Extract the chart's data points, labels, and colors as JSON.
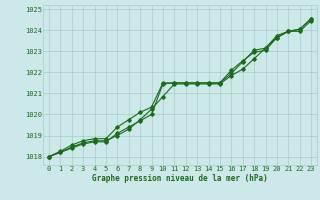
{
  "x": [
    0,
    1,
    2,
    3,
    4,
    5,
    6,
    7,
    8,
    9,
    10,
    11,
    12,
    13,
    14,
    15,
    16,
    17,
    18,
    19,
    20,
    21,
    22,
    23
  ],
  "line1": [
    1018.0,
    1018.2,
    1018.4,
    1018.6,
    1018.7,
    1018.7,
    1019.1,
    1019.4,
    1019.7,
    1020.0,
    1021.45,
    1021.5,
    1021.5,
    1021.5,
    1021.5,
    1021.5,
    1022.1,
    1022.55,
    1022.95,
    1023.05,
    1023.65,
    1023.95,
    1024.05,
    1024.55
  ],
  "line2": [
    1018.0,
    1018.2,
    1018.45,
    1018.65,
    1018.75,
    1018.75,
    1019.0,
    1019.3,
    1019.75,
    1020.25,
    1020.85,
    1021.45,
    1021.45,
    1021.45,
    1021.45,
    1021.45,
    1021.85,
    1022.15,
    1022.65,
    1023.15,
    1023.65,
    1023.95,
    1023.95,
    1024.45
  ],
  "line3": [
    1018.0,
    1018.25,
    1018.55,
    1018.75,
    1018.85,
    1018.85,
    1019.4,
    1019.75,
    1020.1,
    1020.35,
    1021.5,
    1021.5,
    1021.5,
    1021.5,
    1021.5,
    1021.5,
    1021.95,
    1022.5,
    1023.05,
    1023.15,
    1023.75,
    1023.95,
    1024.05,
    1024.55
  ],
  "ylim": [
    1017.6,
    1025.2
  ],
  "yticks": [
    1018,
    1019,
    1020,
    1021,
    1022,
    1023,
    1024,
    1025
  ],
  "xticks": [
    0,
    1,
    2,
    3,
    4,
    5,
    6,
    7,
    8,
    9,
    10,
    11,
    12,
    13,
    14,
    15,
    16,
    17,
    18,
    19,
    20,
    21,
    22,
    23
  ],
  "xlabel": "Graphe pression niveau de la mer (hPa)",
  "line_color": "#1a6b1a",
  "bg_color": "#cce8e8",
  "grid_color": "#aacccc",
  "marker": "D",
  "marker_size": 1.8,
  "line_width": 0.8,
  "tick_fontsize": 5.0,
  "xlabel_fontsize": 5.5
}
